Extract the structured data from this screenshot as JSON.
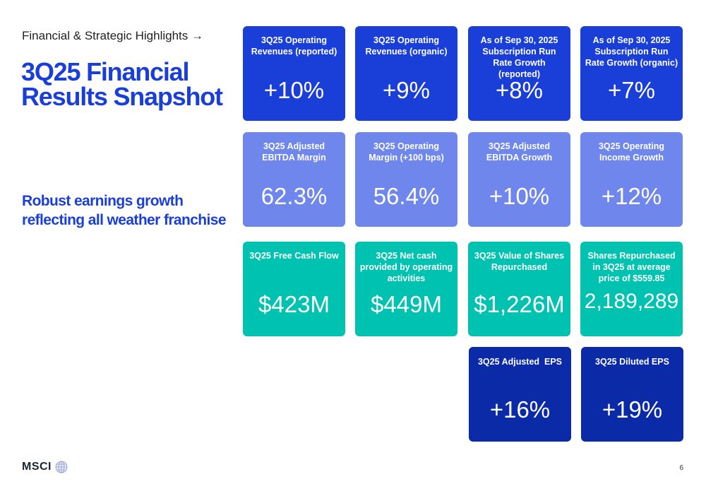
{
  "header": {
    "breadcrumb": "Financial & Strategic Highlights →",
    "title": "3Q25 Financial Results Snapshot",
    "subtitle": "Robust earnings growth reflecting all weather franchise"
  },
  "colors": {
    "title": "#1a3fd8",
    "row1": "#1a3fd8",
    "row2": "#6f86ec",
    "row3": "#00c2b0",
    "row4": "#0b2aa8"
  },
  "cards": [
    {
      "label": "3Q25 Operating Revenues (reported)",
      "value": "+10%"
    },
    {
      "label": "3Q25 Operating Revenues (organic)",
      "value": "+9%"
    },
    {
      "label": "As of Sep 30, 2025 Subscription Run Rate Growth (reported)",
      "value": "+8%"
    },
    {
      "label": "As of Sep 30, 2025 Subscription Run Rate Growth (organic)",
      "value": "+7%"
    },
    {
      "label": "3Q25 Adjusted EBITDA Margin",
      "value": "62.3%"
    },
    {
      "label": "3Q25 Operating Margin (+100 bps)",
      "value": "56.4%"
    },
    {
      "label": "3Q25 Adjusted EBITDA Growth",
      "value": "+10%"
    },
    {
      "label": "3Q25 Operating Income Growth",
      "value": "+12%"
    },
    {
      "label": "3Q25 Free Cash Flow",
      "value": "$423M"
    },
    {
      "label": "3Q25 Net cash provided by operating activities",
      "value": "$449M"
    },
    {
      "label": "3Q25 Value of Shares Repurchased",
      "value": "$1,226M"
    },
    {
      "label": "Shares Repurchased in 3Q25 at average price of $559.85",
      "value": "2,189,289"
    },
    {
      "label": "3Q25 Adjusted  EPS",
      "value": "+16%"
    },
    {
      "label": "3Q25 Diluted EPS",
      "value": "+19%"
    }
  ],
  "footer": {
    "logo": "MSCI",
    "page_number": "6"
  }
}
